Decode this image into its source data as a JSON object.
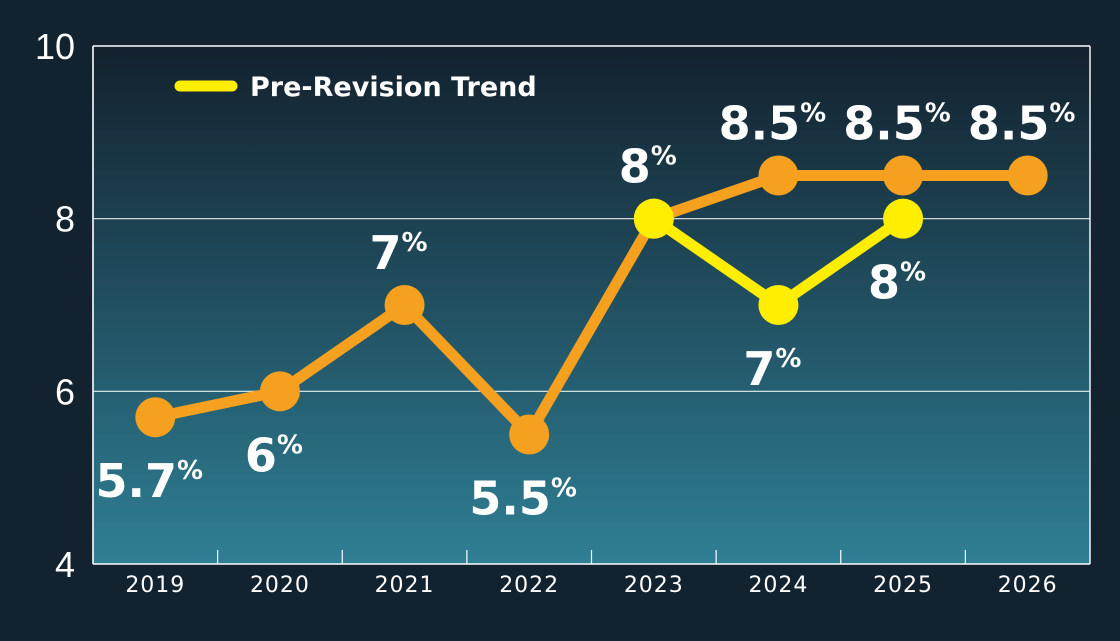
{
  "chart_data": {
    "type": "line",
    "categories": [
      "2019",
      "2020",
      "2021",
      "2022",
      "2023",
      "2024",
      "2025",
      "2026"
    ],
    "ylim": [
      4,
      10
    ],
    "yticks": [
      "4",
      "6",
      "8",
      "10"
    ],
    "grid": "horizontal",
    "legend_position": "top-left",
    "series": [
      {
        "name": "",
        "color": "#f5a11f",
        "x": [
          "2019",
          "2020",
          "2021",
          "2022",
          "2023",
          "2024",
          "2025",
          "2026"
        ],
        "values": [
          5.7,
          6,
          7,
          5.5,
          8,
          8.5,
          8.5,
          8.5
        ],
        "labels": [
          "5.7",
          "6",
          "7",
          "5.5",
          "8",
          "8.5",
          "8.5",
          "8.5"
        ],
        "label_pos": [
          "below",
          "below",
          "above",
          "below",
          "above",
          "above",
          "above",
          "above"
        ]
      },
      {
        "name": "Pre-Revision Trend",
        "color": "#ffee00",
        "x": [
          "2023",
          "2024",
          "2025"
        ],
        "values": [
          8,
          7,
          8
        ],
        "labels": [
          "",
          "7",
          "8"
        ],
        "label_pos": [
          "none",
          "below",
          "below"
        ]
      }
    ],
    "percent_suffix": "%",
    "colors": {
      "bg_top": "#13212e",
      "bg_bottom": "#2f7f94",
      "axis": "#ffffff"
    }
  }
}
